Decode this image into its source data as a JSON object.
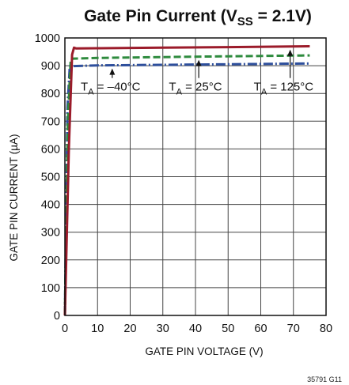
{
  "chart_data": {
    "type": "line",
    "title": {
      "prefix": "Gate Pin Current (V",
      "subscript": "SS",
      "suffix": " = 2.1V)"
    },
    "xlabel": "GATE PIN VOLTAGE (V)",
    "ylabel": "GATE PIN CURRENT (µA)",
    "xlim": [
      0,
      80
    ],
    "ylim": [
      0,
      1000
    ],
    "xticks": [
      0,
      10,
      20,
      30,
      40,
      50,
      60,
      70,
      80
    ],
    "yticks": [
      0,
      100,
      200,
      300,
      400,
      500,
      600,
      700,
      800,
      900,
      1000
    ],
    "grid": true,
    "series": [
      {
        "name": "T_A = –40°C",
        "color": "#2e4f9c",
        "dash": "longdash-dot",
        "points": [
          [
            0,
            0
          ],
          [
            0.8,
            750
          ],
          [
            1.5,
            898
          ],
          [
            10,
            901
          ],
          [
            30,
            903
          ],
          [
            50,
            905
          ],
          [
            75,
            908
          ]
        ]
      },
      {
        "name": "T_A = 25°C",
        "color": "#2e8b3e",
        "dash": "dashed",
        "points": [
          [
            0,
            0
          ],
          [
            0.9,
            700
          ],
          [
            1.8,
            925
          ],
          [
            10,
            928
          ],
          [
            30,
            931
          ],
          [
            50,
            934
          ],
          [
            75,
            937
          ]
        ]
      },
      {
        "name": "T_A = 125°C",
        "color": "#9b1b2a",
        "dash": "solid",
        "points": [
          [
            0,
            0
          ],
          [
            1.2,
            600
          ],
          [
            2.2,
            940
          ],
          [
            2.8,
            965
          ],
          [
            3.5,
            962
          ],
          [
            10,
            963
          ],
          [
            30,
            965
          ],
          [
            50,
            967
          ],
          [
            75,
            970
          ]
        ]
      }
    ],
    "annotations": [
      {
        "label_main": "T",
        "label_sub": "A",
        "label_rest": " = –40°C",
        "series": 0,
        "x": 14,
        "y": 810,
        "arrow_x": 14.5
      },
      {
        "label_main": "T",
        "label_sub": "A",
        "label_rest": " = 25°C",
        "series": 1,
        "x": 40,
        "y": 810,
        "arrow_x": 41
      },
      {
        "label_main": "T",
        "label_sub": "A",
        "label_rest": " = 125°C",
        "series": 2,
        "x": 67,
        "y": 810,
        "arrow_x": 69
      }
    ],
    "figure_code": "35791 G11"
  }
}
